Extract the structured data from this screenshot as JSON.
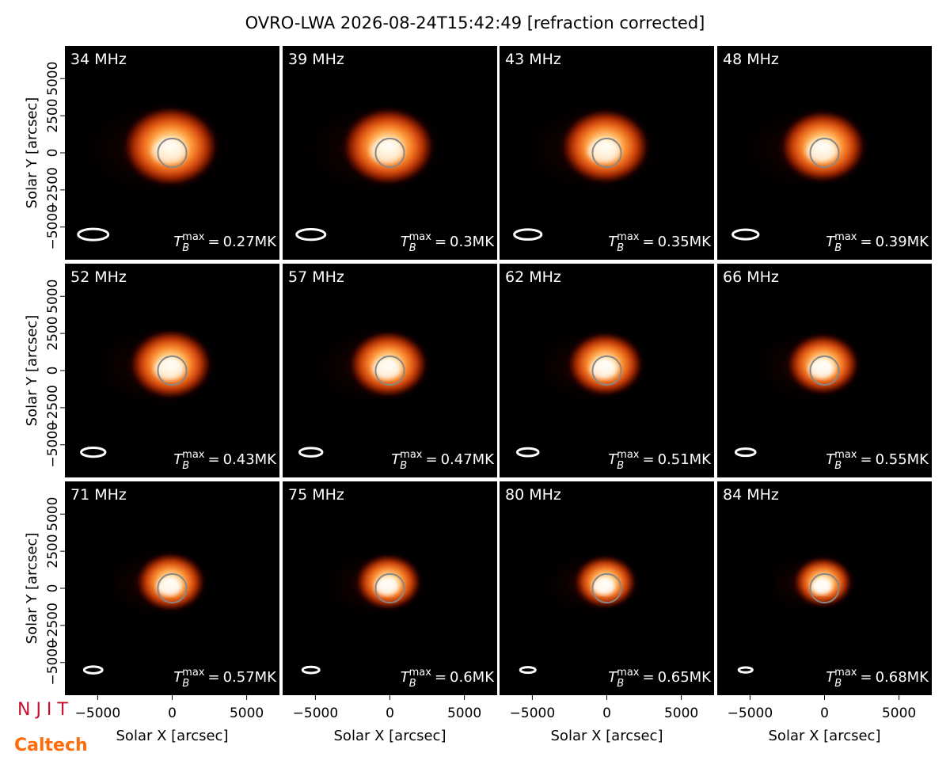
{
  "chart_data": {
    "type": "image_grid",
    "title": "OVRO-LWA 2026-08-24T15:42:49 [refraction corrected]",
    "xlabel": "Solar X [arcsec]",
    "ylabel": "Solar Y [arcsec]",
    "xlim": [
      -7200,
      7200
    ],
    "ylim": [
      -7200,
      7200
    ],
    "xticks": [
      {
        "value": -5000,
        "label": "−5000"
      },
      0,
      5000
    ],
    "yticks": [
      {
        "value": -5000,
        "label": "−5000"
      },
      {
        "value": -2500,
        "label": "−2500"
      },
      0,
      2500,
      5000
    ],
    "colormap": "gist_heat",
    "tb_symbol": "T",
    "tb_subscript": "B",
    "tb_superscript": "max",
    "tb_equals": "=",
    "panels": [
      {
        "label": "34 MHz",
        "tb_max": {
          "value": 0.27,
          "label": "0.27MK"
        }
      },
      {
        "label": "39 MHz",
        "tb_max": {
          "value": 0.3,
          "label": "0.3MK"
        }
      },
      {
        "label": "43 MHz",
        "tb_max": {
          "value": 0.35,
          "label": "0.35MK"
        }
      },
      {
        "label": "48 MHz",
        "tb_max": {
          "value": 0.39,
          "label": "0.39MK"
        }
      },
      {
        "label": "52 MHz",
        "tb_max": {
          "value": 0.43,
          "label": "0.43MK"
        }
      },
      {
        "label": "57 MHz",
        "tb_max": {
          "value": 0.47,
          "label": "0.47MK"
        }
      },
      {
        "label": "62 MHz",
        "tb_max": {
          "value": 0.51,
          "label": "0.51MK"
        }
      },
      {
        "label": "66 MHz",
        "tb_max": {
          "value": 0.55,
          "label": "0.55MK"
        }
      },
      {
        "label": "71 MHz",
        "tb_max": {
          "value": 0.57,
          "label": "0.57MK"
        }
      },
      {
        "label": "75 MHz",
        "tb_max": {
          "value": 0.6,
          "label": "0.6MK"
        }
      },
      {
        "label": "80 MHz",
        "tb_max": {
          "value": 0.65,
          "label": "0.65MK"
        }
      },
      {
        "label": "84 MHz",
        "tb_max": {
          "value": 0.68,
          "label": "0.68MK"
        }
      }
    ],
    "logos": [
      "N J I T",
      "Caltech"
    ]
  }
}
